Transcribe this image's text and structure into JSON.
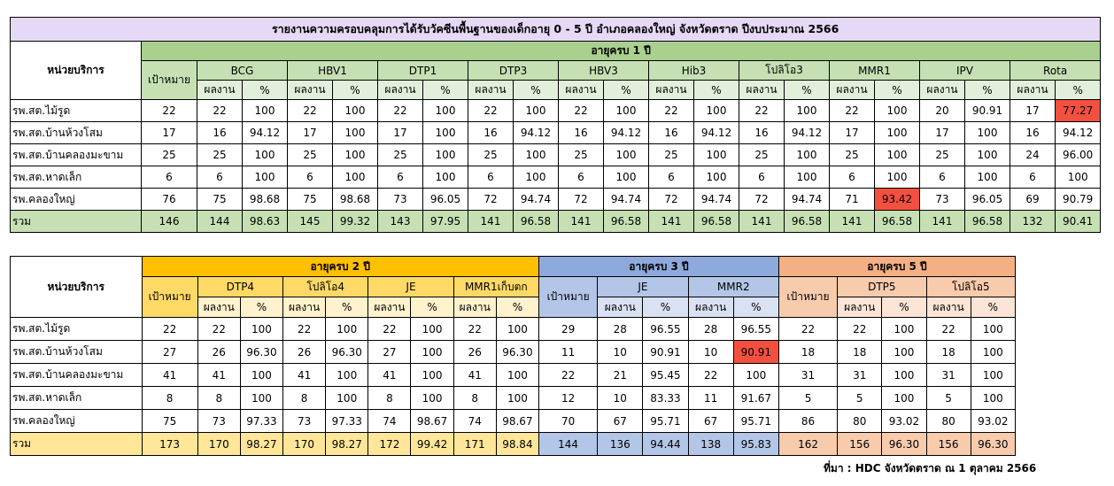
{
  "report": {
    "title": "รายงานความครอบคลุมการได้รับวัคซีนพื้นฐานของเด็กอายุ 0 - 5 ปี อำเภอคลองใหญ่ จังหวัดตราด ปีงบประมาณ 2566",
    "unit_header": "หน่วยบริการ",
    "target_label": "เป้าหมาย",
    "result_label": "ผลงาน",
    "percent_label": "%",
    "source": "ที่มา : HDC จังหวัดตราด ณ 1 ตุลาคม 2566"
  },
  "table1": {
    "age_group": "อายุครบ 1 ปี",
    "vaccines": [
      "BCG",
      "HBV1",
      "DTP1",
      "DTP3",
      "HBV3",
      "Hib3",
      "โปลิโอ3",
      "MMR1",
      "IPV",
      "Rota"
    ],
    "rows": [
      {
        "unit": "รพ.สต.ไม้รูด",
        "target": "22",
        "cells": [
          [
            "22",
            "100"
          ],
          [
            "22",
            "100"
          ],
          [
            "22",
            "100"
          ],
          [
            "22",
            "100"
          ],
          [
            "22",
            "100"
          ],
          [
            "22",
            "100"
          ],
          [
            "22",
            "100"
          ],
          [
            "22",
            "100"
          ],
          [
            "20",
            "90.91"
          ],
          [
            "17",
            "77.27"
          ]
        ]
      },
      {
        "unit": "รพ.สต.บ้านห้วงโสม",
        "target": "17",
        "cells": [
          [
            "16",
            "94.12"
          ],
          [
            "17",
            "100"
          ],
          [
            "17",
            "100"
          ],
          [
            "16",
            "94.12"
          ],
          [
            "16",
            "94.12"
          ],
          [
            "16",
            "94.12"
          ],
          [
            "16",
            "94.12"
          ],
          [
            "17",
            "100"
          ],
          [
            "17",
            "100"
          ],
          [
            "16",
            "94.12"
          ]
        ]
      },
      {
        "unit": "รพ.สต.บ้านคลองมะขาม",
        "target": "25",
        "cells": [
          [
            "25",
            "100"
          ],
          [
            "25",
            "100"
          ],
          [
            "25",
            "100"
          ],
          [
            "25",
            "100"
          ],
          [
            "25",
            "100"
          ],
          [
            "25",
            "100"
          ],
          [
            "25",
            "100"
          ],
          [
            "25",
            "100"
          ],
          [
            "25",
            "100"
          ],
          [
            "24",
            "96.00"
          ]
        ]
      },
      {
        "unit": "รพ.สต.หาดเล็ก",
        "target": "6",
        "cells": [
          [
            "6",
            "100"
          ],
          [
            "6",
            "100"
          ],
          [
            "6",
            "100"
          ],
          [
            "6",
            "100"
          ],
          [
            "6",
            "100"
          ],
          [
            "6",
            "100"
          ],
          [
            "6",
            "100"
          ],
          [
            "6",
            "100"
          ],
          [
            "6",
            "100"
          ],
          [
            "6",
            "100"
          ]
        ]
      },
      {
        "unit": "รพ.คลองใหญ่",
        "target": "76",
        "cells": [
          [
            "75",
            "98.68"
          ],
          [
            "75",
            "98.68"
          ],
          [
            "73",
            "96.05"
          ],
          [
            "72",
            "94.74"
          ],
          [
            "72",
            "94.74"
          ],
          [
            "72",
            "94.74"
          ],
          [
            "72",
            "94.74"
          ],
          [
            "71",
            "93.42"
          ],
          [
            "73",
            "96.05"
          ],
          [
            "69",
            "90.79"
          ]
        ]
      }
    ],
    "total": {
      "unit": "รวม",
      "target": "146",
      "cells": [
        [
          "144",
          "98.63"
        ],
        [
          "145",
          "99.32"
        ],
        [
          "143",
          "97.95"
        ],
        [
          "141",
          "96.58"
        ],
        [
          "141",
          "96.58"
        ],
        [
          "141",
          "96.58"
        ],
        [
          "141",
          "96.58"
        ],
        [
          "141",
          "96.58"
        ],
        [
          "141",
          "96.58"
        ],
        [
          "132",
          "90.41"
        ]
      ]
    },
    "highlights": [
      [
        0,
        9
      ],
      [
        4,
        7
      ]
    ]
  },
  "table2": {
    "groups": [
      {
        "age": "อายุครบ 2 ปี",
        "vaccines": [
          "DTP4",
          "โปลิโอ4",
          "JE",
          "MMR1เก็บตก"
        ],
        "color": "o"
      },
      {
        "age": "อายุครบ 3 ปี",
        "vaccines": [
          "JE",
          "MMR2"
        ],
        "color": "b"
      },
      {
        "age": "อายุครบ 5 ปี",
        "vaccines": [
          "DTP5",
          "โปลิโอ5"
        ],
        "color": "p"
      }
    ],
    "rows": [
      {
        "unit": "รพ.สต.ไม้รูด",
        "groups": [
          {
            "target": "22",
            "cells": [
              [
                "22",
                "100"
              ],
              [
                "22",
                "100"
              ],
              [
                "22",
                "100"
              ],
              [
                "22",
                "100"
              ]
            ]
          },
          {
            "target": "29",
            "cells": [
              [
                "28",
                "96.55"
              ],
              [
                "28",
                "96.55"
              ]
            ]
          },
          {
            "target": "22",
            "cells": [
              [
                "22",
                "100"
              ],
              [
                "22",
                "100"
              ]
            ]
          }
        ]
      },
      {
        "unit": "รพ.สต.บ้านห้วงโสม",
        "groups": [
          {
            "target": "27",
            "cells": [
              [
                "26",
                "96.30"
              ],
              [
                "26",
                "96.30"
              ],
              [
                "27",
                "100"
              ],
              [
                "26",
                "96.30"
              ]
            ]
          },
          {
            "target": "11",
            "cells": [
              [
                "10",
                "90.91"
              ],
              [
                "10",
                "90.91"
              ]
            ]
          },
          {
            "target": "18",
            "cells": [
              [
                "18",
                "100"
              ],
              [
                "18",
                "100"
              ]
            ]
          }
        ]
      },
      {
        "unit": "รพ.สต.บ้านคลองมะขาม",
        "groups": [
          {
            "target": "41",
            "cells": [
              [
                "41",
                "100"
              ],
              [
                "41",
                "100"
              ],
              [
                "41",
                "100"
              ],
              [
                "41",
                "100"
              ]
            ]
          },
          {
            "target": "22",
            "cells": [
              [
                "21",
                "95.45"
              ],
              [
                "22",
                "100"
              ]
            ]
          },
          {
            "target": "31",
            "cells": [
              [
                "31",
                "100"
              ],
              [
                "31",
                "100"
              ]
            ]
          }
        ]
      },
      {
        "unit": "รพ.สต.หาดเล็ก",
        "groups": [
          {
            "target": "8",
            "cells": [
              [
                "8",
                "100"
              ],
              [
                "8",
                "100"
              ],
              [
                "8",
                "100"
              ],
              [
                "8",
                "100"
              ]
            ]
          },
          {
            "target": "12",
            "cells": [
              [
                "10",
                "83.33"
              ],
              [
                "11",
                "91.67"
              ]
            ]
          },
          {
            "target": "5",
            "cells": [
              [
                "5",
                "100"
              ],
              [
                "5",
                "100"
              ]
            ]
          }
        ]
      },
      {
        "unit": "รพ.คลองใหญ่",
        "groups": [
          {
            "target": "75",
            "cells": [
              [
                "73",
                "97.33"
              ],
              [
                "73",
                "97.33"
              ],
              [
                "74",
                "98.67"
              ],
              [
                "74",
                "98.67"
              ]
            ]
          },
          {
            "target": "70",
            "cells": [
              [
                "67",
                "95.71"
              ],
              [
                "67",
                "95.71"
              ]
            ]
          },
          {
            "target": "86",
            "cells": [
              [
                "80",
                "93.02"
              ],
              [
                "80",
                "93.02"
              ]
            ]
          }
        ]
      }
    ],
    "total": {
      "unit": "รวม",
      "groups": [
        {
          "target": "173",
          "cells": [
            [
              "170",
              "98.27"
            ],
            [
              "170",
              "98.27"
            ],
            [
              "172",
              "99.42"
            ],
            [
              "171",
              "98.84"
            ]
          ]
        },
        {
          "target": "144",
          "cells": [
            [
              "136",
              "94.44"
            ],
            [
              "138",
              "95.83"
            ]
          ]
        },
        {
          "target": "162",
          "cells": [
            [
              "156",
              "96.30"
            ],
            [
              "156",
              "96.30"
            ]
          ]
        }
      ]
    },
    "highlights": [
      [
        1,
        1,
        1
      ]
    ]
  }
}
